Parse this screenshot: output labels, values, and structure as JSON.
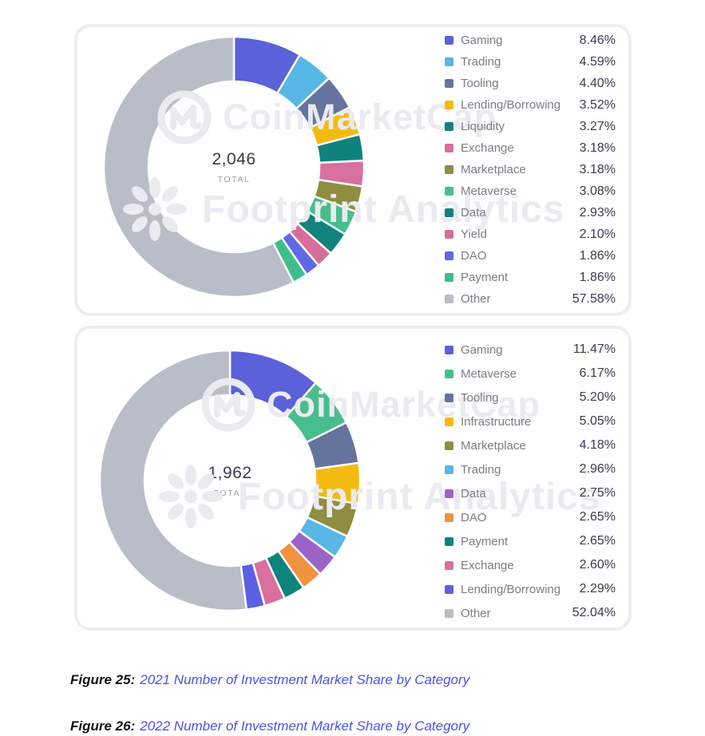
{
  "watermarks": {
    "brand1": "CoinMarketCap",
    "brand2": "Footprint Analytics"
  },
  "figures": [
    {
      "label": "Figure 25:",
      "title": "2021 Number of Investment Market Share by Category"
    },
    {
      "label": "Figure 26:",
      "title": "2022 Number of Investment Market Share by Category"
    }
  ],
  "chart_data": [
    {
      "type": "pie",
      "subtype": "donut",
      "title": "2021 Number of Investment Market Share by Category",
      "total_display": "2,046",
      "total_value": 2046,
      "total_label": "TOTAL",
      "legend_position": "right",
      "segments": [
        {
          "label": "Gaming",
          "value": 8.46,
          "display": "8.46%",
          "color": "#5A61D9"
        },
        {
          "label": "Trading",
          "value": 4.59,
          "display": "4.59%",
          "color": "#58B7E6"
        },
        {
          "label": "Tooling",
          "value": 4.4,
          "display": "4.40%",
          "color": "#64749E"
        },
        {
          "label": "Lending/Borrowing",
          "value": 3.52,
          "display": "3.52%",
          "color": "#F3BB12"
        },
        {
          "label": "Liquidity",
          "value": 3.27,
          "display": "3.27%",
          "color": "#0E837D"
        },
        {
          "label": "Exchange",
          "value": 3.18,
          "display": "3.18%",
          "color": "#D9709F"
        },
        {
          "label": "Marketplace",
          "value": 3.18,
          "display": "3.18%",
          "color": "#8F8D40"
        },
        {
          "label": "Metaverse",
          "value": 3.08,
          "display": "3.08%",
          "color": "#47BE8D"
        },
        {
          "label": "Data",
          "value": 2.93,
          "display": "2.93%",
          "color": "#11837B"
        },
        {
          "label": "Yield",
          "value": 2.1,
          "display": "2.10%",
          "color": "#D66E9C"
        },
        {
          "label": "DAO",
          "value": 1.86,
          "display": "1.86%",
          "color": "#5F68E6"
        },
        {
          "label": "Payment",
          "value": 1.86,
          "display": "1.86%",
          "color": "#3FBD8C"
        },
        {
          "label": "Other",
          "value": 57.58,
          "display": "57.58%",
          "color": "#B9BDC8"
        }
      ]
    },
    {
      "type": "pie",
      "subtype": "donut",
      "title": "2022 Number of Investment Market Share by Category",
      "total_display": "1,962",
      "total_value": 1962,
      "total_label": "TOTAL",
      "legend_position": "right",
      "segments": [
        {
          "label": "Gaming",
          "value": 11.47,
          "display": "11.47%",
          "color": "#5A61D9"
        },
        {
          "label": "Metaverse",
          "value": 6.17,
          "display": "6.17%",
          "color": "#47BE8D"
        },
        {
          "label": "Tooling",
          "value": 5.2,
          "display": "5.20%",
          "color": "#64749E"
        },
        {
          "label": "Infrastructure",
          "value": 5.05,
          "display": "5.05%",
          "color": "#F3BB12"
        },
        {
          "label": "Marketplace",
          "value": 4.18,
          "display": "4.18%",
          "color": "#8F8D40"
        },
        {
          "label": "Trading",
          "value": 2.96,
          "display": "2.96%",
          "color": "#58B7E6"
        },
        {
          "label": "Data",
          "value": 2.75,
          "display": "2.75%",
          "color": "#9D62C6"
        },
        {
          "label": "DAO",
          "value": 2.65,
          "display": "2.65%",
          "color": "#F0923F"
        },
        {
          "label": "Payment",
          "value": 2.65,
          "display": "2.65%",
          "color": "#0E837D"
        },
        {
          "label": "Exchange",
          "value": 2.6,
          "display": "2.60%",
          "color": "#D9709F"
        },
        {
          "label": "Lending/Borrowing",
          "value": 2.29,
          "display": "2.29%",
          "color": "#5B60E3"
        },
        {
          "label": "Other",
          "value": 52.04,
          "display": "52.04%",
          "color": "#B9BDC8"
        }
      ]
    }
  ]
}
